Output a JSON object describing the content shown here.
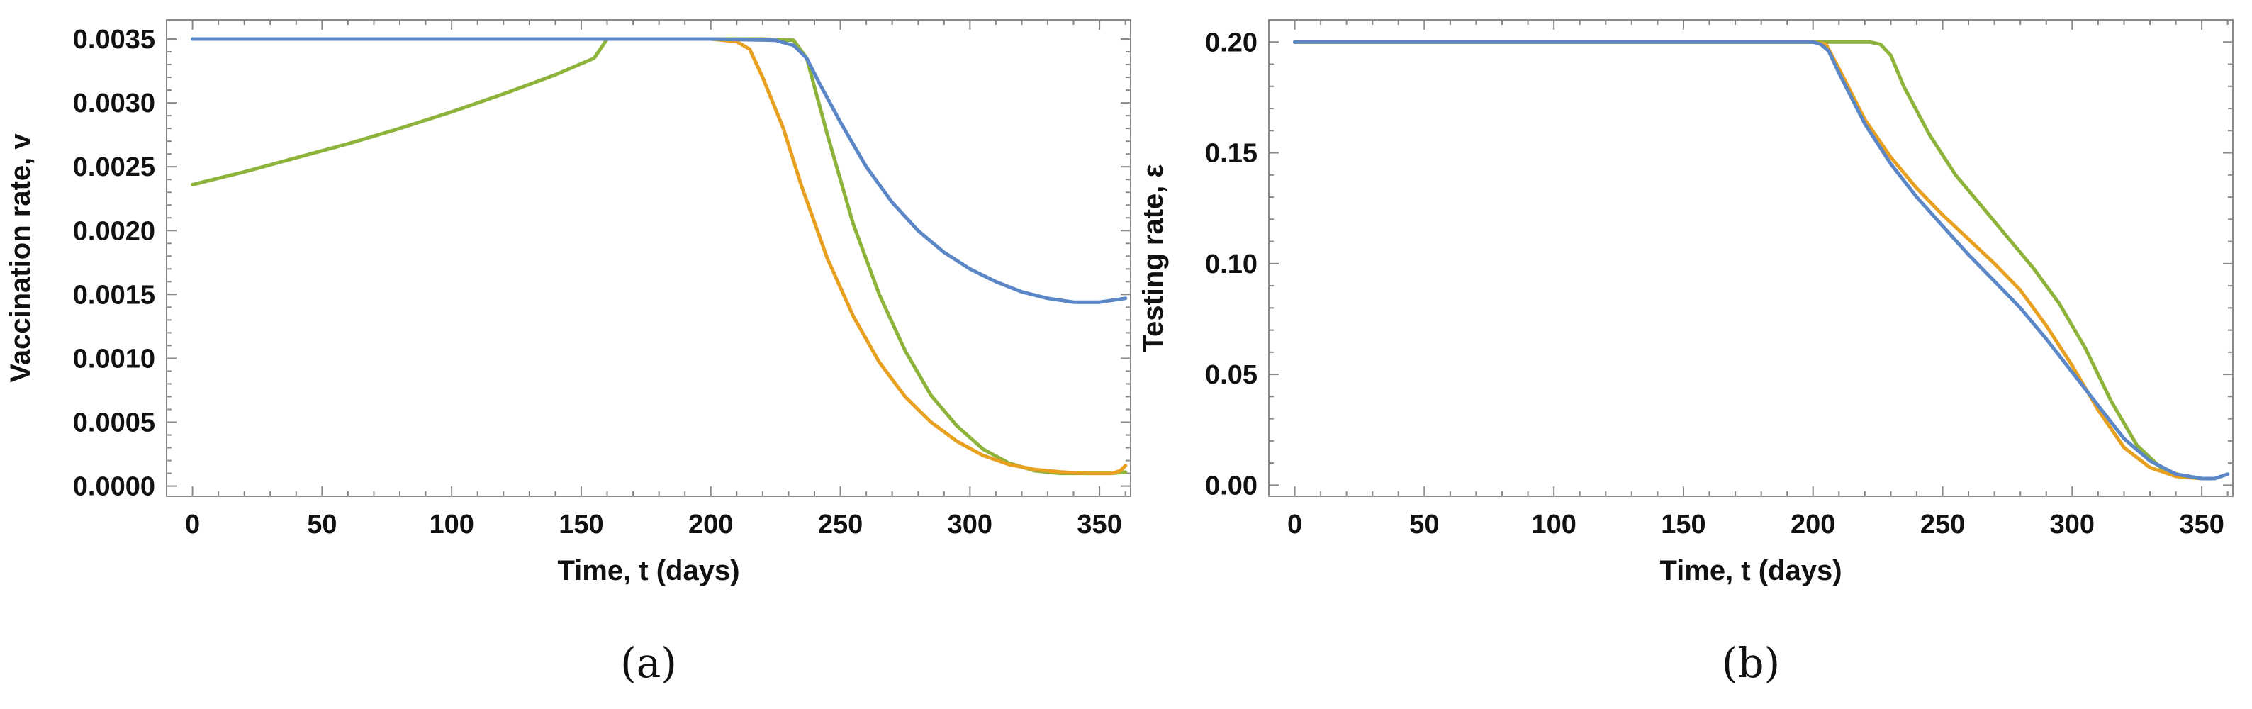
{
  "chart_data": [
    {
      "type": "line",
      "panel": "a",
      "panel_label": "(a)",
      "xlabel": "Time, t (days)",
      "ylabel": "Vaccination rate, v",
      "xlim": [
        -10,
        362
      ],
      "ylim": [
        -8e-05,
        0.00365
      ],
      "xticks": [
        0,
        50,
        100,
        150,
        200,
        250,
        300,
        350
      ],
      "xtick_labels": [
        "0",
        "50",
        "100",
        "150",
        "200",
        "250",
        "300",
        "350"
      ],
      "yticks": [
        0.0,
        0.0005,
        0.001,
        0.0015,
        0.002,
        0.0025,
        0.003,
        0.0035
      ],
      "ytick_labels": [
        "0.0000",
        "0.0005",
        "0.0010",
        "0.0015",
        "0.0020",
        "0.0025",
        "0.0030",
        "0.0035"
      ],
      "series": [
        {
          "name": "green",
          "color": "#8db33b",
          "x": [
            0,
            20,
            40,
            60,
            80,
            100,
            120,
            140,
            155,
            160,
            200,
            220,
            232,
            237,
            245,
            255,
            265,
            275,
            285,
            295,
            305,
            315,
            325,
            335,
            345,
            355,
            360
          ],
          "y": [
            0.00236,
            0.00246,
            0.00257,
            0.00268,
            0.0028,
            0.00293,
            0.00307,
            0.00322,
            0.00335,
            0.0035,
            0.0035,
            0.0035,
            0.00349,
            0.00335,
            0.00275,
            0.00205,
            0.0015,
            0.00106,
            0.00071,
            0.00047,
            0.00029,
            0.00018,
            0.00012,
            0.0001,
            0.0001,
            0.0001,
            0.00011
          ]
        },
        {
          "name": "orange",
          "color": "#e8a020",
          "x": [
            0,
            100,
            200,
            210,
            215,
            220,
            228,
            235,
            245,
            255,
            265,
            275,
            285,
            295,
            305,
            315,
            325,
            335,
            345,
            355,
            358,
            360
          ],
          "y": [
            0.0035,
            0.0035,
            0.0035,
            0.00348,
            0.00342,
            0.0032,
            0.0028,
            0.00235,
            0.00178,
            0.00133,
            0.00097,
            0.0007,
            0.0005,
            0.00035,
            0.00024,
            0.00017,
            0.00013,
            0.00011,
            0.0001,
            0.0001,
            0.00012,
            0.00016
          ]
        },
        {
          "name": "blue",
          "color": "#5b87c7",
          "x": [
            0,
            100,
            200,
            225,
            232,
            237,
            242,
            250,
            260,
            270,
            280,
            290,
            300,
            310,
            320,
            330,
            340,
            350,
            360
          ],
          "y": [
            0.0035,
            0.0035,
            0.0035,
            0.00349,
            0.00345,
            0.00335,
            0.00315,
            0.00285,
            0.0025,
            0.00222,
            0.002,
            0.00183,
            0.0017,
            0.0016,
            0.00152,
            0.00147,
            0.00144,
            0.00144,
            0.00147
          ]
        }
      ]
    },
    {
      "type": "line",
      "panel": "b",
      "panel_label": "(b)",
      "xlabel": "Time, t (days)",
      "ylabel": "Testing rate, ε",
      "xlim": [
        -10,
        362
      ],
      "ylim": [
        -0.005,
        0.21
      ],
      "xticks": [
        0,
        50,
        100,
        150,
        200,
        250,
        300,
        350
      ],
      "xtick_labels": [
        "0",
        "50",
        "100",
        "150",
        "200",
        "250",
        "300",
        "350"
      ],
      "yticks": [
        0.0,
        0.05,
        0.1,
        0.15,
        0.2
      ],
      "ytick_labels": [
        "0.00",
        "0.05",
        "0.10",
        "0.15",
        "0.20"
      ],
      "series": [
        {
          "name": "green",
          "color": "#8db33b",
          "x": [
            0,
            100,
            200,
            215,
            222,
            226,
            230,
            235,
            245,
            255,
            265,
            275,
            285,
            295,
            305,
            315,
            325,
            335,
            343,
            350
          ],
          "y": [
            0.2,
            0.2,
            0.2,
            0.2,
            0.2,
            0.199,
            0.194,
            0.18,
            0.158,
            0.14,
            0.126,
            0.112,
            0.098,
            0.082,
            0.062,
            0.038,
            0.018,
            0.007,
            0.004,
            0.003
          ]
        },
        {
          "name": "orange",
          "color": "#e8a020",
          "x": [
            0,
            200,
            205,
            210,
            220,
            230,
            240,
            250,
            260,
            270,
            280,
            290,
            300,
            310,
            320,
            330,
            340,
            350
          ],
          "y": [
            0.2,
            0.2,
            0.199,
            0.188,
            0.165,
            0.148,
            0.134,
            0.122,
            0.111,
            0.1,
            0.088,
            0.072,
            0.054,
            0.034,
            0.017,
            0.008,
            0.004,
            0.003
          ]
        },
        {
          "name": "blue",
          "color": "#5b87c7",
          "x": [
            0,
            100,
            200,
            203,
            206,
            210,
            220,
            230,
            240,
            250,
            260,
            270,
            280,
            290,
            300,
            310,
            320,
            330,
            340,
            350,
            355,
            360
          ],
          "y": [
            0.2,
            0.2,
            0.2,
            0.199,
            0.196,
            0.186,
            0.163,
            0.145,
            0.13,
            0.117,
            0.104,
            0.092,
            0.08,
            0.066,
            0.051,
            0.036,
            0.021,
            0.011,
            0.005,
            0.003,
            0.003,
            0.005
          ]
        }
      ]
    }
  ]
}
